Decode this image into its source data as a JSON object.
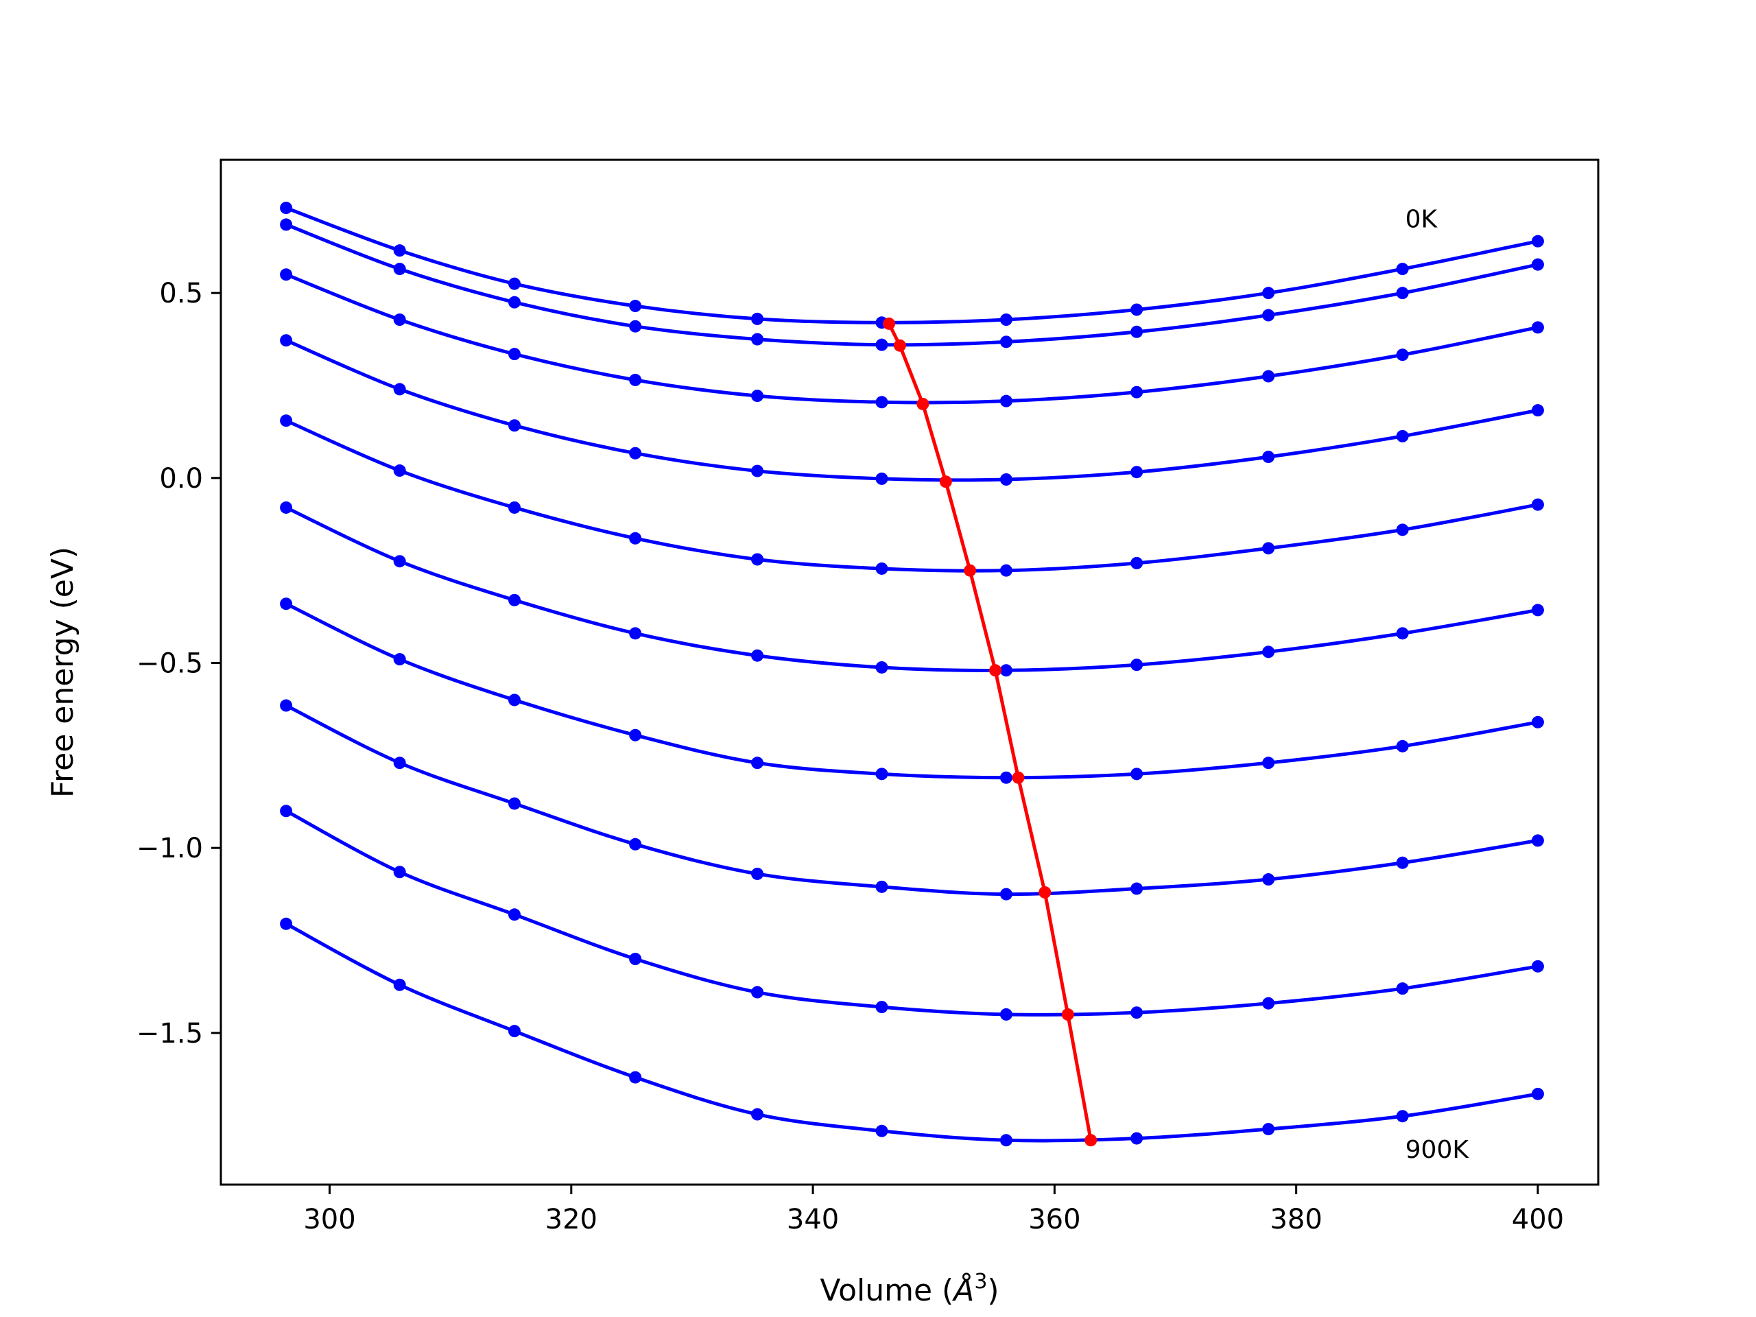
{
  "chart_data": {
    "type": "line",
    "title": "",
    "xlabel_text": "Volume (",
    "xlabel_symbol": "Å",
    "xlabel_sup": "3",
    "xlabel_close": ")",
    "ylabel": "Free energy (eV)",
    "xlim": [
      291,
      405
    ],
    "ylim": [
      -1.91,
      0.86
    ],
    "xticks": [
      300,
      320,
      340,
      360,
      380,
      400
    ],
    "xtick_labels": [
      "300",
      "320",
      "340",
      "360",
      "380",
      "400"
    ],
    "yticks": [
      0.5,
      0.0,
      -0.5,
      -1.0,
      -1.5
    ],
    "ytick_labels": [
      "0.5",
      "0.0",
      "−0.5",
      "−1.0",
      "−1.5"
    ],
    "grid": false,
    "series_color": "#0000ff",
    "minima_color": "#ff0000",
    "x": [
      296.4,
      305.8,
      315.3,
      325.3,
      335.4,
      345.7,
      356.0,
      366.8,
      377.7,
      388.8,
      400.0
    ],
    "series": [
      {
        "values": [
          0.73,
          0.615,
          0.525,
          0.465,
          0.43,
          0.42,
          0.428,
          0.455,
          0.5,
          0.565,
          0.64
        ]
      },
      {
        "values": [
          0.685,
          0.565,
          0.475,
          0.41,
          0.375,
          0.36,
          0.368,
          0.395,
          0.44,
          0.5,
          0.577
        ]
      },
      {
        "values": [
          0.55,
          0.428,
          0.335,
          0.265,
          0.222,
          0.205,
          0.208,
          0.232,
          0.275,
          0.333,
          0.407
        ]
      },
      {
        "values": [
          0.372,
          0.24,
          0.142,
          0.067,
          0.019,
          -0.002,
          -0.004,
          0.016,
          0.057,
          0.113,
          0.183
        ]
      },
      {
        "values": [
          0.155,
          0.02,
          -0.08,
          -0.163,
          -0.22,
          -0.245,
          -0.25,
          -0.23,
          -0.19,
          -0.14,
          -0.072
        ]
      },
      {
        "values": [
          -0.08,
          -0.225,
          -0.33,
          -0.42,
          -0.48,
          -0.512,
          -0.52,
          -0.505,
          -0.47,
          -0.42,
          -0.357
        ]
      },
      {
        "values": [
          -0.34,
          -0.49,
          -0.6,
          -0.695,
          -0.77,
          -0.8,
          -0.81,
          -0.8,
          -0.77,
          -0.725,
          -0.66
        ]
      },
      {
        "values": [
          -0.615,
          -0.77,
          -0.88,
          -0.99,
          -1.07,
          -1.105,
          -1.125,
          -1.11,
          -1.085,
          -1.04,
          -0.98
        ]
      },
      {
        "values": [
          -0.9,
          -1.065,
          -1.18,
          -1.3,
          -1.39,
          -1.43,
          -1.45,
          -1.445,
          -1.42,
          -1.38,
          -1.32
        ]
      },
      {
        "values": [
          -1.205,
          -1.37,
          -1.495,
          -1.62,
          -1.72,
          -1.765,
          -1.79,
          -1.785,
          -1.76,
          -1.725,
          -1.665
        ]
      }
    ],
    "minima": {
      "x": [
        346.3,
        347.2,
        349.1,
        351.0,
        353.0,
        355.1,
        357.0,
        359.2,
        361.1,
        363.0
      ],
      "y": [
        0.417,
        0.358,
        0.2,
        -0.01,
        -0.25,
        -0.52,
        -0.81,
        -1.12,
        -1.45,
        -1.79
      ]
    },
    "annotations": [
      {
        "text": "0K",
        "x": 388.8,
        "y": 0.7
      },
      {
        "text": "900K",
        "x": 388.8,
        "y": -1.815
      }
    ]
  }
}
